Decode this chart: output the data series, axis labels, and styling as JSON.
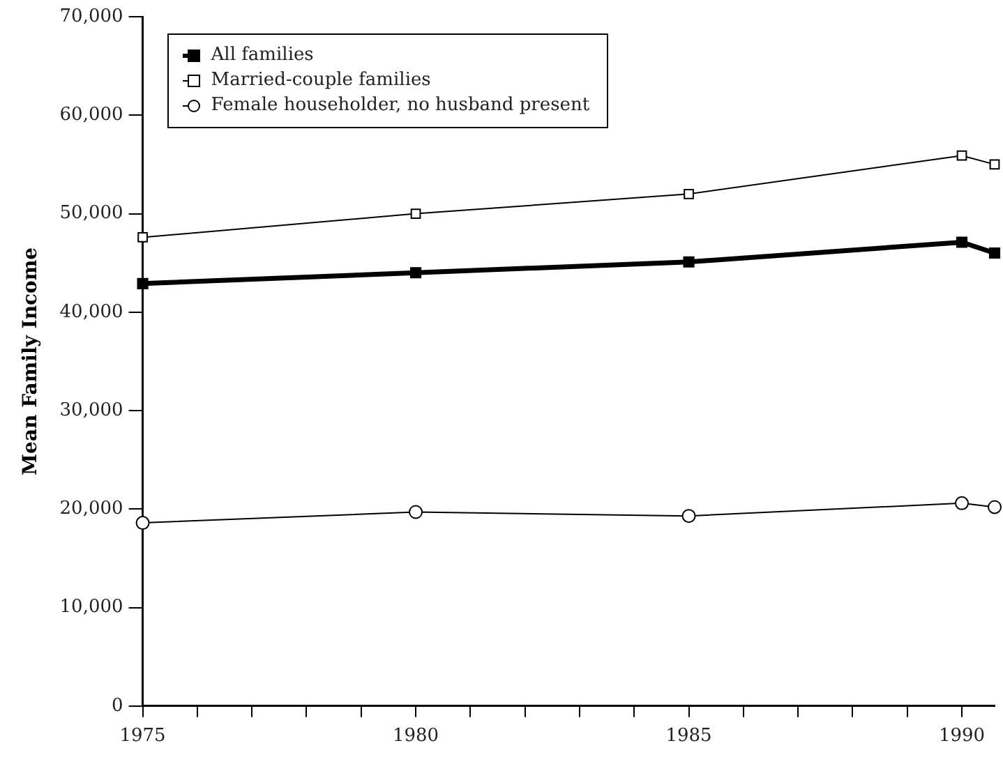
{
  "chart_data": {
    "type": "line",
    "ylabel": "Mean Family Income",
    "legend": "top left",
    "grid": false,
    "x": [
      1975,
      1980,
      1985,
      1990,
      1990.6
    ],
    "xlim": [
      1975,
      1990.6
    ],
    "xticks": [
      {
        "value": 1975,
        "label": "1975"
      },
      {
        "value": 1976,
        "label": null
      },
      {
        "value": 1977,
        "label": null
      },
      {
        "value": 1978,
        "label": null
      },
      {
        "value": 1979,
        "label": null
      },
      {
        "value": 1980,
        "label": "1980"
      },
      {
        "value": 1981,
        "label": null
      },
      {
        "value": 1982,
        "label": null
      },
      {
        "value": 1983,
        "label": null
      },
      {
        "value": 1984,
        "label": null
      },
      {
        "value": 1985,
        "label": "1985"
      },
      {
        "value": 1986,
        "label": null
      },
      {
        "value": 1987,
        "label": null
      },
      {
        "value": 1988,
        "label": null
      },
      {
        "value": 1989,
        "label": null
      },
      {
        "value": 1990,
        "label": "1990"
      }
    ],
    "ylim": [
      0,
      70000
    ],
    "yticks": [
      {
        "value": 0,
        "label": "0"
      },
      {
        "value": 10000,
        "label": "10,000"
      },
      {
        "value": 20000,
        "label": "20,000"
      },
      {
        "value": 30000,
        "label": "30,000"
      },
      {
        "value": 40000,
        "label": "40,000"
      },
      {
        "value": 50000,
        "label": "50,000"
      },
      {
        "value": 60000,
        "label": "60,000"
      },
      {
        "value": 70000,
        "label": "70,000"
      }
    ],
    "line_style": "solid",
    "series": [
      {
        "name": "All families",
        "color": "#000000",
        "marker": "square",
        "values": [
          42900,
          44000,
          45100,
          47100,
          46000
        ]
      },
      {
        "name": "Married-couple families",
        "color": "#000000",
        "marker": "square",
        "values": [
          47600,
          50000,
          52000,
          55900,
          55000
        ]
      },
      {
        "name": "Female householder, no husband present",
        "color": "#000000",
        "marker": "circle",
        "values": [
          18600,
          19700,
          19300,
          20600,
          20200
        ]
      }
    ]
  }
}
